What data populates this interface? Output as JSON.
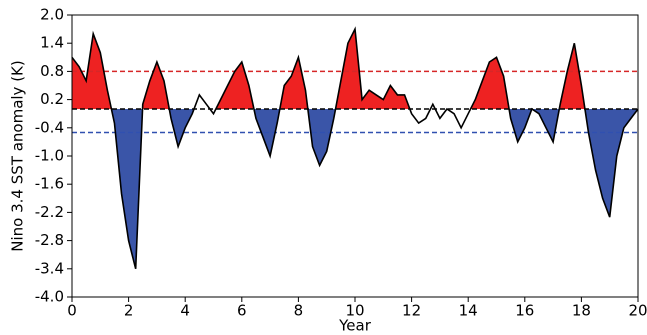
{
  "chart_data": {
    "type": "line",
    "xlabel": "Year",
    "ylabel": "Nino 3.4 SST anomaly (K)",
    "x": [
      0,
      0.25,
      0.5,
      0.75,
      1,
      1.25,
      1.5,
      1.75,
      2,
      2.25,
      2.5,
      2.75,
      3,
      3.25,
      3.5,
      3.75,
      4,
      4.25,
      4.5,
      4.75,
      5,
      5.25,
      5.5,
      5.75,
      6,
      6.25,
      6.5,
      6.75,
      7,
      7.25,
      7.5,
      7.75,
      8,
      8.25,
      8.5,
      8.75,
      9,
      9.25,
      9.5,
      9.75,
      10,
      10.25,
      10.5,
      10.75,
      11,
      11.25,
      11.5,
      11.75,
      12,
      12.25,
      12.5,
      12.75,
      13,
      13.25,
      13.5,
      13.75,
      14,
      14.25,
      14.5,
      14.75,
      15,
      15.25,
      15.5,
      15.75,
      16,
      16.25,
      16.5,
      16.75,
      17,
      17.25,
      17.5,
      17.75,
      18,
      18.25,
      18.5,
      18.75,
      19,
      19.25,
      19.5,
      19.75,
      20
    ],
    "series": [
      {
        "color": "#000000",
        "values": [
          1.1,
          0.9,
          0.6,
          1.6,
          1.2,
          0.4,
          -0.3,
          -1.8,
          -2.8,
          -3.4,
          0.1,
          0.6,
          1.0,
          0.6,
          -0.2,
          -0.8,
          -0.4,
          -0.1,
          0.3,
          0.1,
          -0.1,
          0.2,
          0.5,
          0.8,
          1.0,
          0.5,
          -0.2,
          -0.6,
          -1.0,
          -0.3,
          0.5,
          0.7,
          1.1,
          0.4,
          -0.8,
          -1.2,
          -0.9,
          -0.2,
          0.6,
          1.4,
          1.7,
          0.2,
          0.4,
          0.3,
          0.2,
          0.5,
          0.3,
          0.3,
          -0.1,
          -0.3,
          -0.2,
          0.1,
          -0.2,
          0.0,
          -0.1,
          -0.4,
          -0.1,
          0.2,
          0.6,
          1.0,
          1.1,
          0.7,
          -0.2,
          -0.7,
          -0.4,
          0.0,
          -0.1,
          -0.4,
          -0.7,
          0.1,
          0.8,
          1.4,
          0.5,
          -0.5,
          -1.3,
          -1.9,
          -2.3,
          -1.0,
          -0.4,
          -0.2,
          0.0
        ]
      }
    ],
    "hlines": [
      {
        "value": 0.8,
        "color": "#d62728"
      },
      {
        "value": 0,
        "color": "#000000"
      },
      {
        "value": -0.5,
        "color": "#3050b0"
      }
    ],
    "fill_colors": {
      "above": "#ee2222",
      "below": "#3a55a8"
    },
    "xlim": [
      0,
      20
    ],
    "xticks": [
      0,
      2,
      4,
      6,
      8,
      10,
      12,
      14,
      16,
      18,
      20
    ],
    "ylim": [
      -4,
      2
    ],
    "yticks": [
      {
        "value": 2,
        "label": "2.0"
      },
      1.4,
      0.8,
      0.2,
      -0.4,
      {
        "value": -1,
        "label": "-1.0"
      },
      -1.6,
      -2.2,
      -2.8,
      -3.4,
      {
        "value": -4,
        "label": "-4.0"
      }
    ]
  }
}
